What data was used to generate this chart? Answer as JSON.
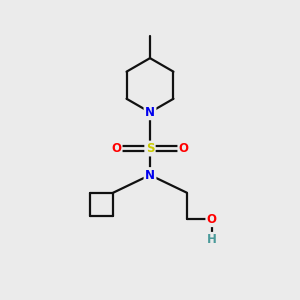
{
  "background_color": "#ebebeb",
  "atom_colors": {
    "N": "#0000ee",
    "S": "#cccc00",
    "O": "#ff0000",
    "H": "#4a9a9a",
    "C": "#000000"
  },
  "font_size_atoms": 8.5,
  "line_color": "#111111",
  "line_width": 1.6
}
